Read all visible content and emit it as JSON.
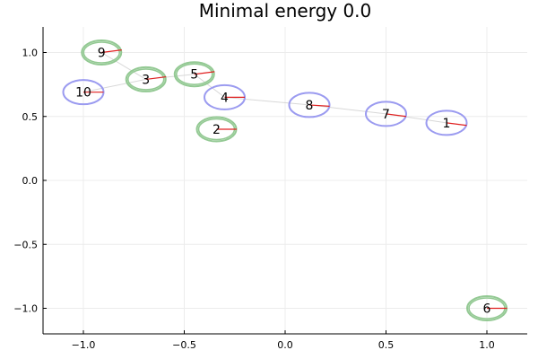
{
  "chart_data": {
    "type": "scatter",
    "title": "Minimal energy 0.0",
    "xlim": [
      -1.2,
      1.2
    ],
    "ylim": [
      -1.2,
      1.2
    ],
    "x_ticks": [
      -1.0,
      -0.5,
      0.0,
      0.5,
      1.0
    ],
    "x_tick_labels": [
      "−1.0",
      "−0.5",
      "0.0",
      "0.5",
      "1.0"
    ],
    "y_ticks": [
      -1.0,
      -0.5,
      0.0,
      0.5,
      1.0
    ],
    "y_tick_labels": [
      "−1.0",
      "−0.5",
      "0.0",
      "0.5",
      "1.0"
    ],
    "grid": true,
    "colors": {
      "blue_ring": "#9b9bf0",
      "green_ring": "#93c993",
      "heading": "#e02020",
      "link": "#d8d8d8",
      "grid": "#ececec"
    },
    "points": [
      {
        "label": "1",
        "x": 0.8,
        "y": 0.45,
        "group": "blue",
        "heading": [
          0.1,
          -0.02
        ]
      },
      {
        "label": "2",
        "x": -0.34,
        "y": 0.4,
        "group": "green",
        "heading": [
          0.1,
          0.0
        ]
      },
      {
        "label": "3",
        "x": -0.69,
        "y": 0.79,
        "group": "green",
        "heading": [
          0.1,
          0.02
        ]
      },
      {
        "label": "4",
        "x": -0.3,
        "y": 0.65,
        "group": "blue",
        "heading": [
          0.1,
          0.0
        ]
      },
      {
        "label": "5",
        "x": -0.45,
        "y": 0.83,
        "group": "green",
        "heading": [
          0.1,
          0.02
        ]
      },
      {
        "label": "6",
        "x": 1.0,
        "y": -1.0,
        "group": "green",
        "heading": [
          0.1,
          0.0
        ]
      },
      {
        "label": "7",
        "x": 0.5,
        "y": 0.52,
        "group": "blue",
        "heading": [
          0.1,
          -0.02
        ]
      },
      {
        "label": "8",
        "x": 0.12,
        "y": 0.59,
        "group": "blue",
        "heading": [
          0.1,
          -0.01
        ]
      },
      {
        "label": "9",
        "x": -0.91,
        "y": 1.0,
        "group": "green",
        "heading": [
          0.1,
          0.02
        ]
      },
      {
        "label": "10",
        "x": -1.0,
        "y": 0.69,
        "group": "blue",
        "heading": [
          0.1,
          0.0
        ]
      }
    ],
    "links": [
      [
        "9",
        "3"
      ],
      [
        "3",
        "10"
      ],
      [
        "3",
        "5"
      ],
      [
        "5",
        "4"
      ],
      [
        "4",
        "8"
      ],
      [
        "8",
        "7"
      ],
      [
        "7",
        "1"
      ]
    ]
  }
}
